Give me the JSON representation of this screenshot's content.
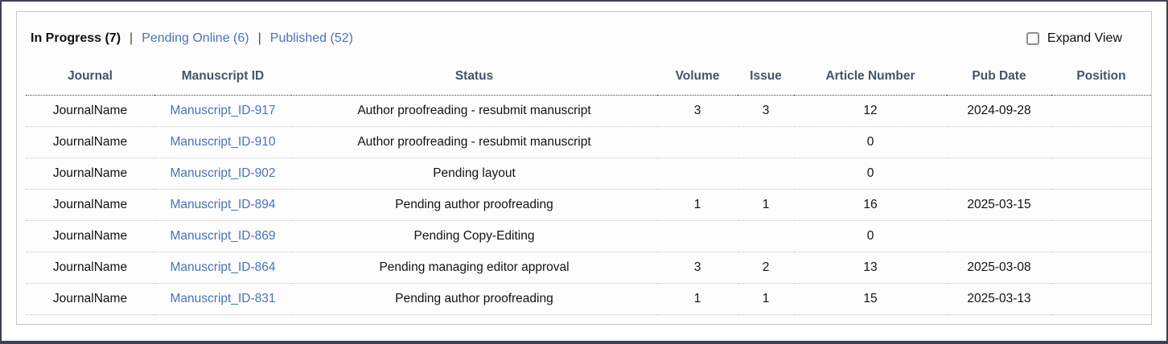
{
  "colors": {
    "link": "#4a72b8",
    "header_text": "#44546a",
    "outer_border": "#3d4350",
    "panel_border": "#c9c9cc"
  },
  "tabs": {
    "separator": "|",
    "items": [
      {
        "label": "In Progress (7)",
        "active": true
      },
      {
        "label": "Pending Online (6)",
        "active": false
      },
      {
        "label": "Published (52)",
        "active": false
      }
    ]
  },
  "expand_view": {
    "label": "Expand View",
    "checked": false
  },
  "table": {
    "columns": [
      {
        "id": "journal",
        "label": "Journal"
      },
      {
        "id": "manuscript_id",
        "label": "Manuscript ID"
      },
      {
        "id": "status",
        "label": "Status"
      },
      {
        "id": "volume",
        "label": "Volume"
      },
      {
        "id": "issue",
        "label": "Issue"
      },
      {
        "id": "article_number",
        "label": "Article Number"
      },
      {
        "id": "pub_date",
        "label": "Pub Date"
      },
      {
        "id": "position",
        "label": "Position"
      }
    ],
    "rows": [
      {
        "journal": "JournalName",
        "manuscript_id": "Manuscript_ID-917",
        "status": "Author proofreading - resubmit manuscript",
        "volume": "3",
        "issue": "3",
        "article_number": "12",
        "pub_date": "2024-09-28",
        "position": ""
      },
      {
        "journal": "JournalName",
        "manuscript_id": "Manuscript_ID-910",
        "status": "Author proofreading - resubmit manuscript",
        "volume": "",
        "issue": "",
        "article_number": "0",
        "pub_date": "",
        "position": ""
      },
      {
        "journal": "JournalName",
        "manuscript_id": "Manuscript_ID-902",
        "status": "Pending layout",
        "volume": "",
        "issue": "",
        "article_number": "0",
        "pub_date": "",
        "position": ""
      },
      {
        "journal": "JournalName",
        "manuscript_id": "Manuscript_ID-894",
        "status": "Pending author proofreading",
        "volume": "1",
        "issue": "1",
        "article_number": "16",
        "pub_date": "2025-03-15",
        "position": ""
      },
      {
        "journal": "JournalName",
        "manuscript_id": "Manuscript_ID-869",
        "status": "Pending Copy-Editing",
        "volume": "",
        "issue": "",
        "article_number": "0",
        "pub_date": "",
        "position": ""
      },
      {
        "journal": "JournalName",
        "manuscript_id": "Manuscript_ID-864",
        "status": "Pending managing editor approval",
        "volume": "3",
        "issue": "2",
        "article_number": "13",
        "pub_date": "2025-03-08",
        "position": ""
      },
      {
        "journal": "JournalName",
        "manuscript_id": "Manuscript_ID-831",
        "status": "Pending author proofreading",
        "volume": "1",
        "issue": "1",
        "article_number": "15",
        "pub_date": "2025-03-13",
        "position": ""
      }
    ]
  }
}
